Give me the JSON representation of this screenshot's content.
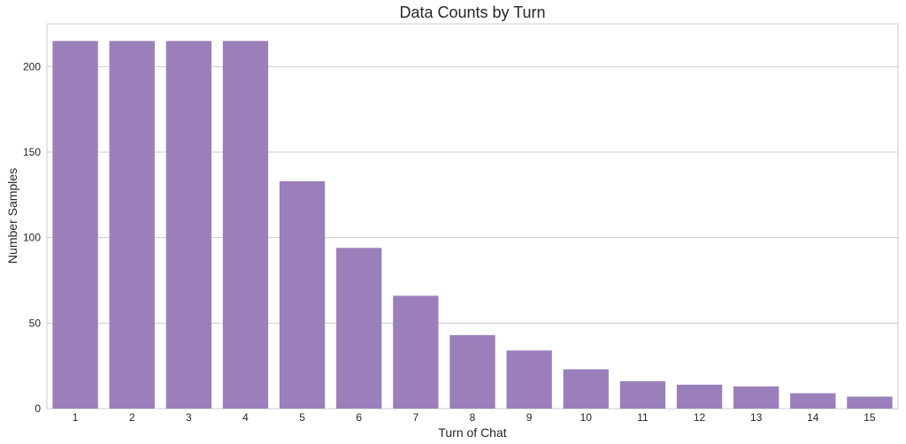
{
  "chart_data": {
    "type": "bar",
    "title": "Data Counts by Turn",
    "xlabel": "Turn of Chat",
    "ylabel": "Number Samples",
    "categories": [
      "1",
      "2",
      "3",
      "4",
      "5",
      "6",
      "7",
      "8",
      "9",
      "10",
      "11",
      "12",
      "13",
      "14",
      "15"
    ],
    "values": [
      215,
      215,
      215,
      215,
      133,
      94,
      66,
      43,
      34,
      23,
      16,
      14,
      13,
      9,
      7
    ],
    "ylim": [
      0,
      225
    ],
    "yticks": [
      0,
      50,
      100,
      150,
      200
    ],
    "grid": true,
    "bar_color": "#9a7fba",
    "grid_color": "#cccccc",
    "frame_color": "#cccccc"
  }
}
